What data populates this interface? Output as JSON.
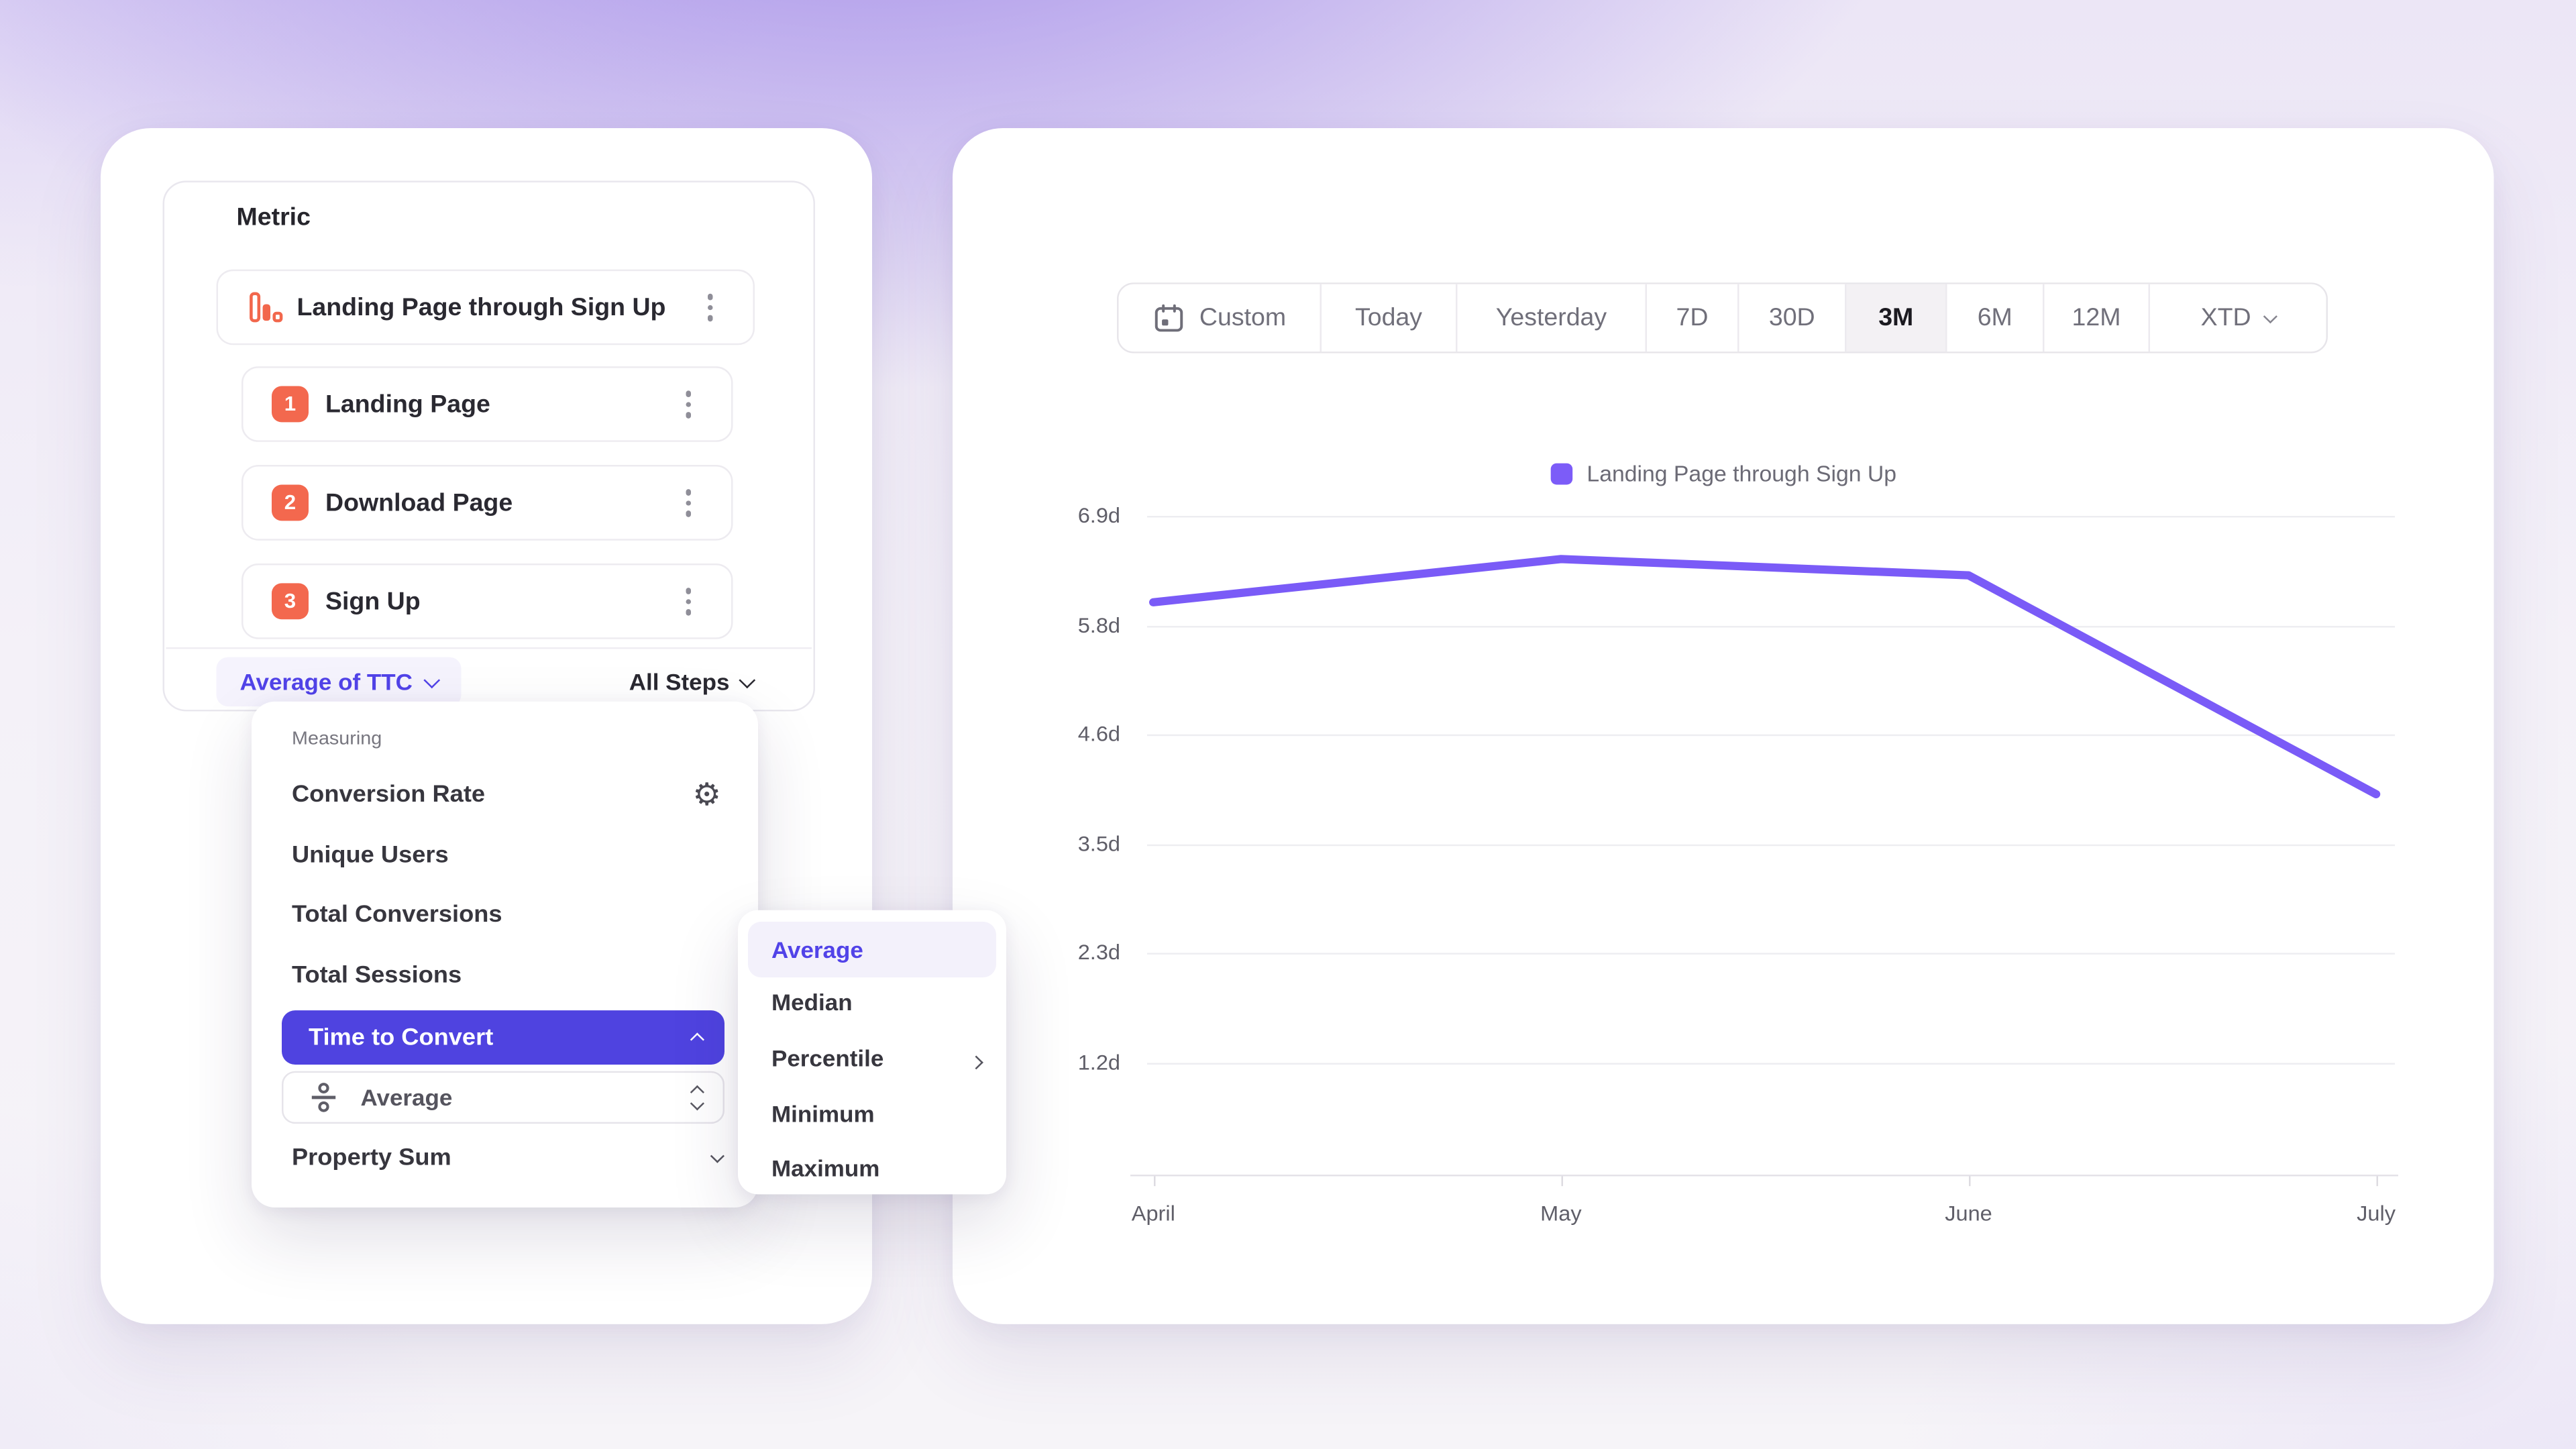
{
  "metric_panel": {
    "title": "Metric",
    "funnel": {
      "name": "Landing Page through Sign Up",
      "icon": "funnel-bars-icon",
      "steps": [
        {
          "index": "1",
          "label": "Landing Page"
        },
        {
          "index": "2",
          "label": "Download Page"
        },
        {
          "index": "3",
          "label": "Sign Up"
        }
      ]
    },
    "footer": {
      "measurement_label": "Average of TTC",
      "steps_scope_label": "All Steps"
    }
  },
  "measuring_menu": {
    "section_label": "Measuring",
    "items": [
      {
        "label": "Conversion Rate",
        "icon": "gear-icon"
      },
      {
        "label": "Unique Users"
      },
      {
        "label": "Total Conversions"
      },
      {
        "label": "Total Sessions"
      },
      {
        "label": "Time to Convert",
        "selected": true,
        "icon": "chevron-up-icon"
      },
      {
        "label": "Property Sum",
        "icon": "chevron-down-icon"
      }
    ],
    "ttc_aggregation": {
      "label": "Average",
      "left_icon": "divide-icon",
      "right_icon": "up-down-stepper-icon"
    }
  },
  "aggregation_submenu": {
    "items": [
      {
        "label": "Average",
        "selected": true
      },
      {
        "label": "Median"
      },
      {
        "label": "Percentile",
        "icon": "chevron-right-icon"
      },
      {
        "label": "Minimum"
      },
      {
        "label": "Maximum"
      }
    ]
  },
  "chart_panel": {
    "date_range_toolbar": {
      "buttons": [
        {
          "label": "Custom",
          "icon": "calendar-icon"
        },
        {
          "label": "Today"
        },
        {
          "label": "Yesterday"
        },
        {
          "label": "7D"
        },
        {
          "label": "30D"
        },
        {
          "label": "3M",
          "selected": true
        },
        {
          "label": "6M"
        },
        {
          "label": "12M"
        },
        {
          "label": "XTD",
          "icon": "chevron-down-icon"
        }
      ],
      "selected": "3M"
    },
    "legend": {
      "label": "Landing Page through Sign Up",
      "swatch_color": "#7c5cf8"
    }
  },
  "chart_data": {
    "type": "line",
    "title": "",
    "categories": [
      "April",
      "May",
      "June",
      "July"
    ],
    "series": [
      {
        "name": "Landing Page through Sign Up",
        "values": [
          6.0,
          6.45,
          6.28,
          4.0
        ]
      }
    ],
    "y_tick_labels": [
      "6.9d",
      "5.8d",
      "4.6d",
      "3.5d",
      "2.3d",
      "1.2d"
    ],
    "y_tick_values": [
      6.9,
      5.8,
      4.6,
      3.5,
      2.3,
      1.2
    ],
    "unit": "days",
    "ylim": [
      1.2,
      6.9
    ],
    "line_color": "#7a5bf7",
    "grid": "horizontal",
    "legend_position": "top-center"
  },
  "colors": {
    "accent_indigo": "#4f43e0",
    "accent_purple_text": "#5143e8",
    "line_purple": "#7a5bf7",
    "step_orange": "#f3684e",
    "selected_tab_bg": "#f3f1f4"
  }
}
